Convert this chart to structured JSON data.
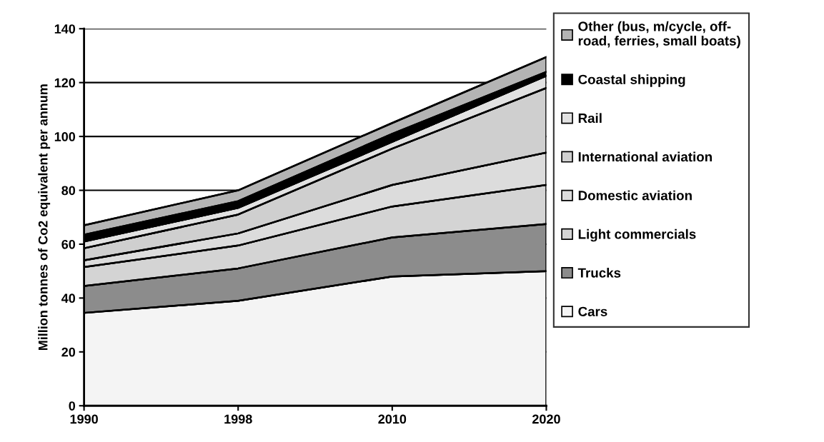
{
  "chart_data": {
    "type": "area",
    "stacked": true,
    "ylabel": "Million tonnes of Co2 equivalent per annum",
    "categories": [
      "1990",
      "1998",
      "2010",
      "2020"
    ],
    "series": [
      {
        "name": "Cars",
        "color": "#f4f4f4",
        "values": [
          34.5,
          39,
          48,
          50
        ]
      },
      {
        "name": "Trucks",
        "color": "#8c8c8c",
        "values": [
          10,
          12,
          14.5,
          17.5
        ]
      },
      {
        "name": "Light commercials",
        "color": "#d4d4d4",
        "values": [
          7,
          8.5,
          11.5,
          14.5
        ]
      },
      {
        "name": "Domestic aviation",
        "color": "#dcdcdc",
        "values": [
          2.5,
          4.5,
          8,
          12
        ]
      },
      {
        "name": "International aviation",
        "color": "#cfcfcf",
        "values": [
          4.5,
          7,
          13.5,
          24
        ]
      },
      {
        "name": "Rail",
        "color": "#e2e2e2",
        "values": [
          2.5,
          2.5,
          2.5,
          4.5
        ]
      },
      {
        "name": "Coastal shipping",
        "color": "#000000",
        "values": [
          2.5,
          2.5,
          3,
          1.5
        ]
      },
      {
        "name": "Other (bus, m/cycle, off-\nroad, ferries, small boats)",
        "color": "#b4b4b4",
        "values": [
          3.5,
          4,
          4,
          5.5
        ]
      }
    ],
    "ylim": [
      0,
      140
    ],
    "yticks": [
      0,
      20,
      40,
      60,
      80,
      100,
      120,
      140
    ],
    "grid": "y",
    "legend": "right"
  }
}
